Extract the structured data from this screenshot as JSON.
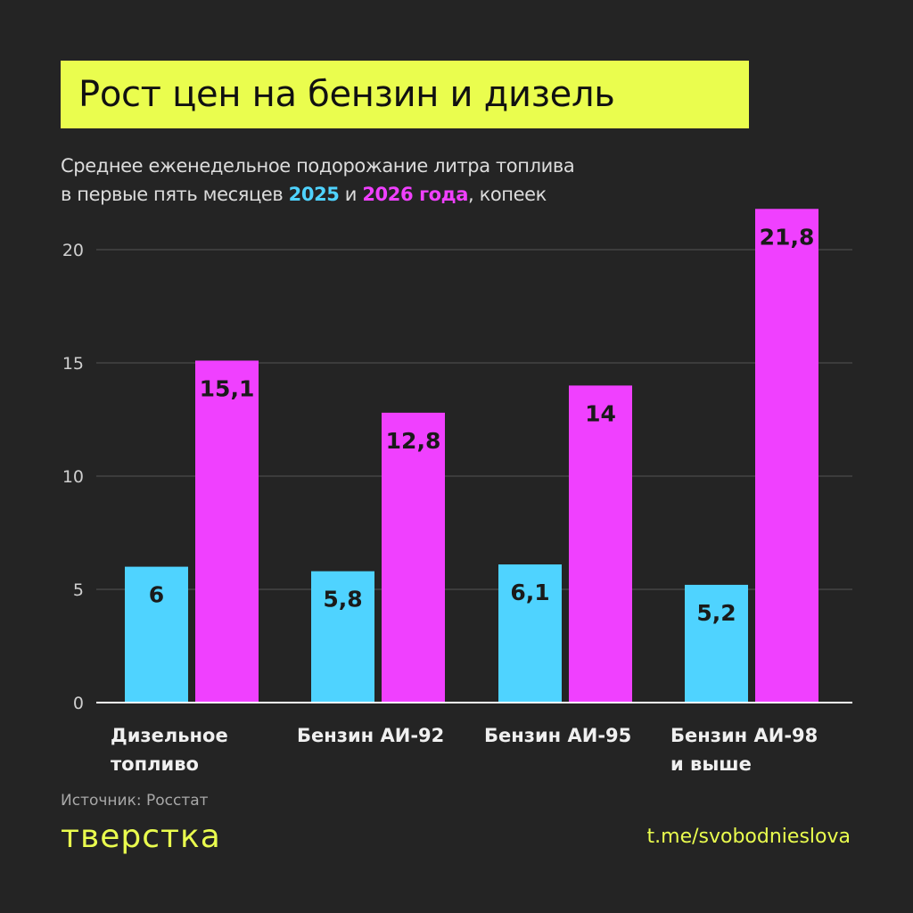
{
  "title": "Рост цен на бензин и дизель",
  "subtitle": {
    "line1": "Среднее еженедельное подорожание литра топлива",
    "line2_prefix": "в первые пять месяцев ",
    "year1": "2025",
    "connector": " и ",
    "year2": "2026 года",
    "suffix": ", копеек"
  },
  "source": "Источник: Росстат",
  "logo": "тверстка",
  "channel": "t.me/svobodnieslova",
  "colors": {
    "series_2025": "#4fd3ff",
    "series_2026": "#f040ff",
    "accent": "#eafd4e",
    "background": "#242424"
  },
  "chart_data": {
    "type": "bar",
    "categories": [
      [
        "Дизельное",
        "топливо"
      ],
      [
        "Бензин АИ-92"
      ],
      [
        "Бензин АИ-95"
      ],
      [
        "Бензин АИ-98",
        "и выше"
      ]
    ],
    "series": [
      {
        "name": "2025",
        "values": [
          6,
          5.8,
          6.1,
          5.2
        ],
        "labels": [
          "6",
          "5,8",
          "6,1",
          "5,2"
        ],
        "color": "#4fd3ff"
      },
      {
        "name": "2026",
        "values": [
          15.1,
          12.8,
          14,
          21.8
        ],
        "labels": [
          "15,1",
          "12,8",
          "14",
          "21,8"
        ],
        "color": "#f040ff"
      }
    ],
    "yticks": [
      "0",
      "5",
      "10",
      "15",
      "20"
    ],
    "ylim": [
      0,
      20
    ],
    "grid": true
  }
}
